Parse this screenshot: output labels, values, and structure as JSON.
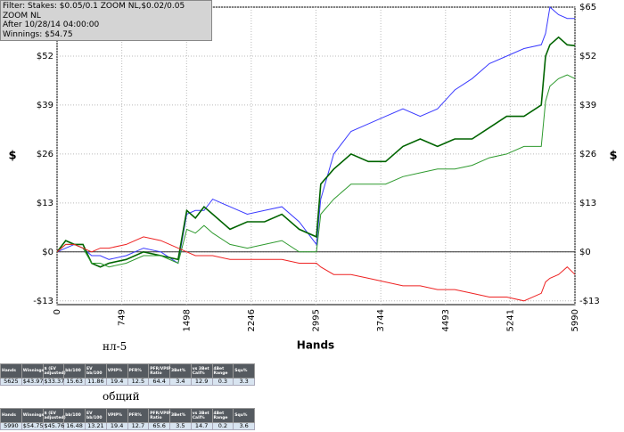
{
  "chart_data": {
    "type": "line",
    "x_label": "Hands",
    "y_label": "$",
    "x": [
      0,
      100,
      200,
      300,
      400,
      500,
      600,
      800,
      1000,
      1200,
      1400,
      1500,
      1600,
      1700,
      1800,
      2000,
      2200,
      2400,
      2600,
      2800,
      3000,
      3050,
      3200,
      3400,
      3600,
      3800,
      4000,
      4200,
      4400,
      4600,
      4800,
      5000,
      5200,
      5400,
      5600,
      5650,
      5700,
      5800,
      5900,
      5990
    ],
    "series": [
      {
        "color": "#3a3aff",
        "values": [
          0,
          1,
          2,
          1,
          -1,
          -1,
          -2,
          -1,
          1,
          0,
          -3,
          10,
          11,
          11,
          14,
          12,
          10,
          11,
          12,
          8,
          2,
          14,
          26,
          32,
          34,
          36,
          38,
          36,
          38,
          43,
          46,
          50,
          52,
          54,
          55,
          58,
          65,
          63,
          62,
          62
        ]
      },
      {
        "color": "#006400",
        "values": [
          0,
          3,
          2,
          2,
          -3,
          -4,
          -3,
          -2,
          0,
          -1,
          -2,
          11,
          9,
          12,
          10,
          6,
          8,
          8,
          10,
          6,
          4,
          18,
          22,
          26,
          24,
          24,
          28,
          30,
          28,
          30,
          30,
          33,
          36,
          36,
          39,
          52,
          55,
          57,
          55,
          54.75
        ]
      },
      {
        "color": "#2e9a2e",
        "values": [
          0,
          2,
          2,
          1,
          -3,
          -3,
          -4,
          -3,
          -1,
          -1,
          -3,
          6,
          5,
          7,
          5,
          2,
          1,
          2,
          3,
          0,
          0,
          10,
          14,
          18,
          18,
          18,
          20,
          21,
          22,
          22,
          23,
          25,
          26,
          28,
          28,
          40,
          44,
          46,
          47,
          46
        ]
      },
      {
        "color": "#ee2222",
        "values": [
          0,
          2,
          2,
          1,
          0,
          1,
          1,
          2,
          4,
          3,
          1,
          0,
          -1,
          -1,
          -1,
          -2,
          -2,
          -2,
          -2,
          -3,
          -3,
          -4,
          -6,
          -6,
          -7,
          -8,
          -9,
          -9,
          -10,
          -10,
          -11,
          -12,
          -12,
          -13,
          -11,
          -8,
          -7,
          -6,
          -4,
          -6
        ]
      }
    ],
    "xlim": [
      0,
      5990
    ],
    "xticks": [
      0,
      749,
      1498,
      2246,
      2995,
      3744,
      4493,
      5241,
      5990
    ],
    "ylim": [
      -14,
      65
    ],
    "yticks": [
      {
        "value": -13,
        "label": "-$13"
      },
      {
        "value": 0,
        "label": "$0"
      },
      {
        "value": 13,
        "label": "$13"
      },
      {
        "value": 26,
        "label": "$26"
      },
      {
        "value": 39,
        "label": "$39"
      },
      {
        "value": 52,
        "label": "$52"
      },
      {
        "value": 65,
        "label": "$65"
      }
    ],
    "grid": true
  },
  "filter_box": {
    "lines": [
      "Filter: Stakes: $0.05/0.1 ZOOM NL,$0.02/0.05 ZOOM NL",
      "After 10/28/14 04:00:00",
      "Winnings: $54.75"
    ]
  },
  "tables": [
    {
      "label": "нл-5",
      "columns": [
        "Hands",
        "Winnings",
        "$ (EV adjusted)",
        "bb/100",
        "EV bb/100",
        "VPIP%",
        "PFR%",
        "PFR/VPIP Ratio",
        "3Bet%",
        "vs 3Bet Call%",
        "4Bet Range",
        "Squ%"
      ],
      "rows": [
        [
          "5625",
          "$43.97",
          "$33.37",
          "15.63",
          "11.86",
          "19.4",
          "12.5",
          "64.4",
          "3.4",
          "12.9",
          "0.3",
          "3.3"
        ]
      ]
    },
    {
      "label": "общий",
      "columns": [
        "Hands",
        "Winnings",
        "$ (EV adjusted)",
        "bb/100",
        "EV bb/100",
        "VPIP%",
        "PFR%",
        "PFR/VPIP Ratio",
        "3Bet%",
        "vs 3Bet Call%",
        "4Bet Range",
        "Squ%"
      ],
      "rows": [
        [
          "5990",
          "$54.75",
          "$45.76",
          "16.48",
          "13.21",
          "19.4",
          "12.7",
          "65.6",
          "3.5",
          "14.7",
          "0.2",
          "3.6"
        ]
      ]
    }
  ]
}
